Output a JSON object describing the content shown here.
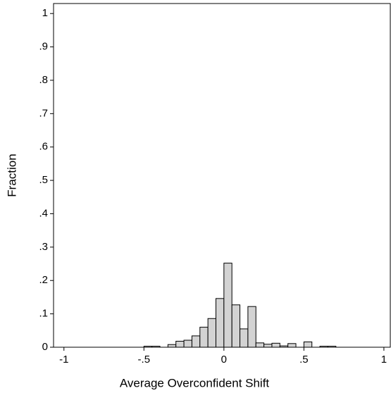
{
  "chart_data": {
    "type": "histogram",
    "x_label": "Average Overconfident Shift",
    "y_label": "Fraction",
    "bins": [
      -0.5,
      -0.45,
      -0.4,
      -0.35,
      -0.3,
      -0.25,
      -0.2,
      -0.15,
      -0.1,
      -0.05,
      0,
      0.05,
      0.1,
      0.15,
      0.2,
      0.25,
      0.3,
      0.35,
      0.4,
      0.45,
      0.5,
      0.55,
      0.6,
      0.65,
      0.7
    ],
    "values": [
      0.003,
      0.003,
      0,
      0.008,
      0.018,
      0.021,
      0.034,
      0.06,
      0.086,
      0.146,
      0.252,
      0.127,
      0.055,
      0.122,
      0.013,
      0.009,
      0.012,
      0.004,
      0.011,
      0,
      0.016,
      0,
      0.003,
      0.003
    ],
    "color": "#d3d3d3",
    "xlim": [
      -1.065,
      1.04
    ],
    "ylim": [
      0,
      1.03
    ],
    "xticks": [
      {
        "value": -1,
        "label": "-1"
      },
      {
        "value": -0.5,
        "label": "-.5"
      },
      0,
      {
        "value": 0.5,
        "label": ".5"
      },
      1
    ],
    "yticks": [
      0,
      {
        "value": 0.1,
        "label": ".1"
      },
      {
        "value": 0.2,
        "label": ".2"
      },
      {
        "value": 0.3,
        "label": ".3"
      },
      {
        "value": 0.4,
        "label": ".4"
      },
      {
        "value": 0.5,
        "label": ".5"
      },
      {
        "value": 0.6,
        "label": ".6"
      },
      {
        "value": 0.7,
        "label": ".7"
      },
      {
        "value": 0.8,
        "label": ".8"
      },
      {
        "value": 0.9,
        "label": ".9"
      },
      1
    ]
  }
}
